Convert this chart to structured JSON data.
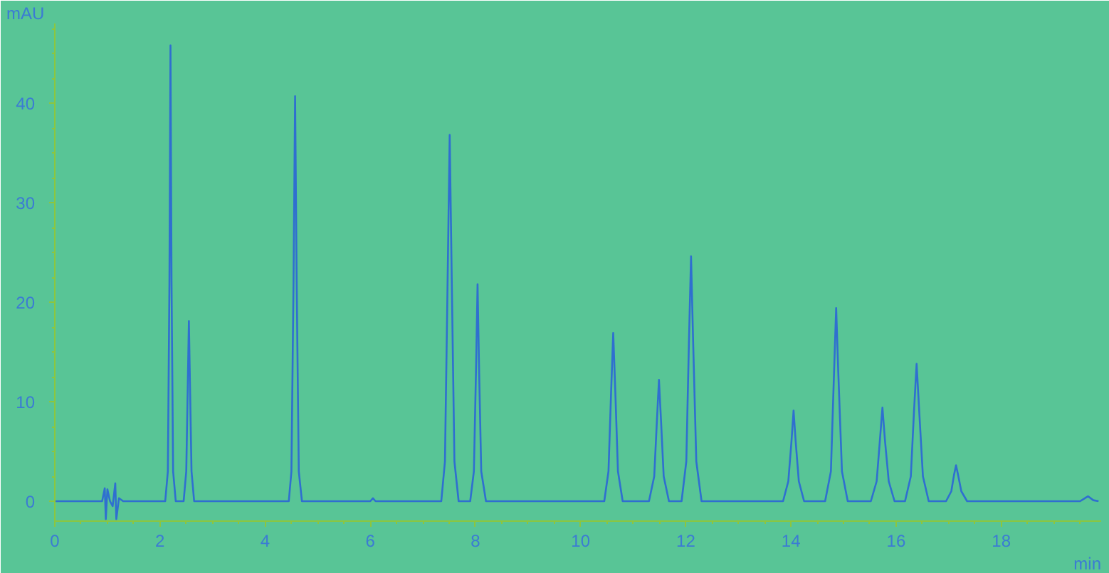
{
  "chart_data": {
    "type": "line",
    "xlabel": "min",
    "ylabel": "mAU",
    "xlim": [
      0,
      19.9
    ],
    "ylim": [
      -2,
      48
    ],
    "xticks": [
      0,
      2,
      4,
      6,
      8,
      10,
      12,
      14,
      16,
      18
    ],
    "yticks": [
      0,
      10,
      20,
      30,
      40
    ],
    "grid": false,
    "marker": "none",
    "line_style": "solid",
    "series": [
      {
        "color": "#2f6fd0",
        "x": [
          0,
          0.9,
          0.95,
          0.97,
          1.0,
          1.05,
          1.1,
          1.15,
          1.17,
          1.22,
          1.3,
          2.1,
          2.15,
          2.18,
          2.2,
          2.22,
          2.25,
          2.3,
          2.45,
          2.5,
          2.53,
          2.55,
          2.57,
          2.6,
          2.65,
          4.45,
          4.5,
          4.54,
          4.57,
          4.6,
          4.64,
          4.7,
          6.0,
          6.05,
          6.1,
          7.35,
          7.42,
          7.47,
          7.51,
          7.55,
          7.6,
          7.68,
          7.9,
          7.97,
          8.01,
          8.04,
          8.07,
          8.11,
          8.2,
          10.45,
          10.53,
          10.58,
          10.62,
          10.66,
          10.71,
          10.8,
          11.3,
          11.4,
          11.45,
          11.49,
          11.53,
          11.58,
          11.68,
          11.92,
          12.01,
          12.06,
          12.1,
          12.14,
          12.2,
          12.3,
          13.85,
          13.95,
          14.01,
          14.05,
          14.09,
          14.15,
          14.25,
          14.65,
          14.76,
          14.82,
          14.86,
          14.9,
          14.97,
          15.08,
          15.52,
          15.63,
          15.69,
          15.74,
          15.79,
          15.86,
          15.97,
          16.17,
          16.28,
          16.34,
          16.39,
          16.44,
          16.51,
          16.62,
          16.95,
          17.05,
          17.1,
          17.14,
          17.18,
          17.24,
          17.35,
          19.5,
          19.65,
          19.75,
          19.85
        ],
        "values": [
          0,
          0,
          1.3,
          -1.8,
          1.2,
          0,
          -0.5,
          1.8,
          -1.8,
          0.3,
          0,
          0,
          3,
          22,
          45.8,
          22,
          3,
          0,
          0,
          3,
          12,
          18.1,
          12,
          3,
          0,
          0,
          3,
          22,
          40.7,
          22,
          3,
          0,
          0,
          0.3,
          0,
          0,
          4,
          22,
          36.8,
          22,
          4,
          0,
          0,
          3,
          13,
          21.8,
          13,
          3,
          0,
          0,
          3,
          11,
          16.9,
          11,
          3,
          0,
          0,
          2.5,
          8,
          12.2,
          8,
          2.5,
          0,
          0,
          4,
          16,
          24.6,
          16,
          4,
          0,
          0,
          2,
          6,
          9.1,
          6,
          2,
          0,
          0,
          3,
          13,
          19.4,
          13,
          3,
          0,
          0,
          2,
          6,
          9.4,
          6,
          2,
          0,
          0,
          2.5,
          9,
          13.8,
          9,
          2.5,
          0,
          0,
          1,
          2.6,
          3.6,
          2.6,
          1,
          0,
          0,
          0.5,
          0.1,
          0
        ]
      }
    ]
  }
}
